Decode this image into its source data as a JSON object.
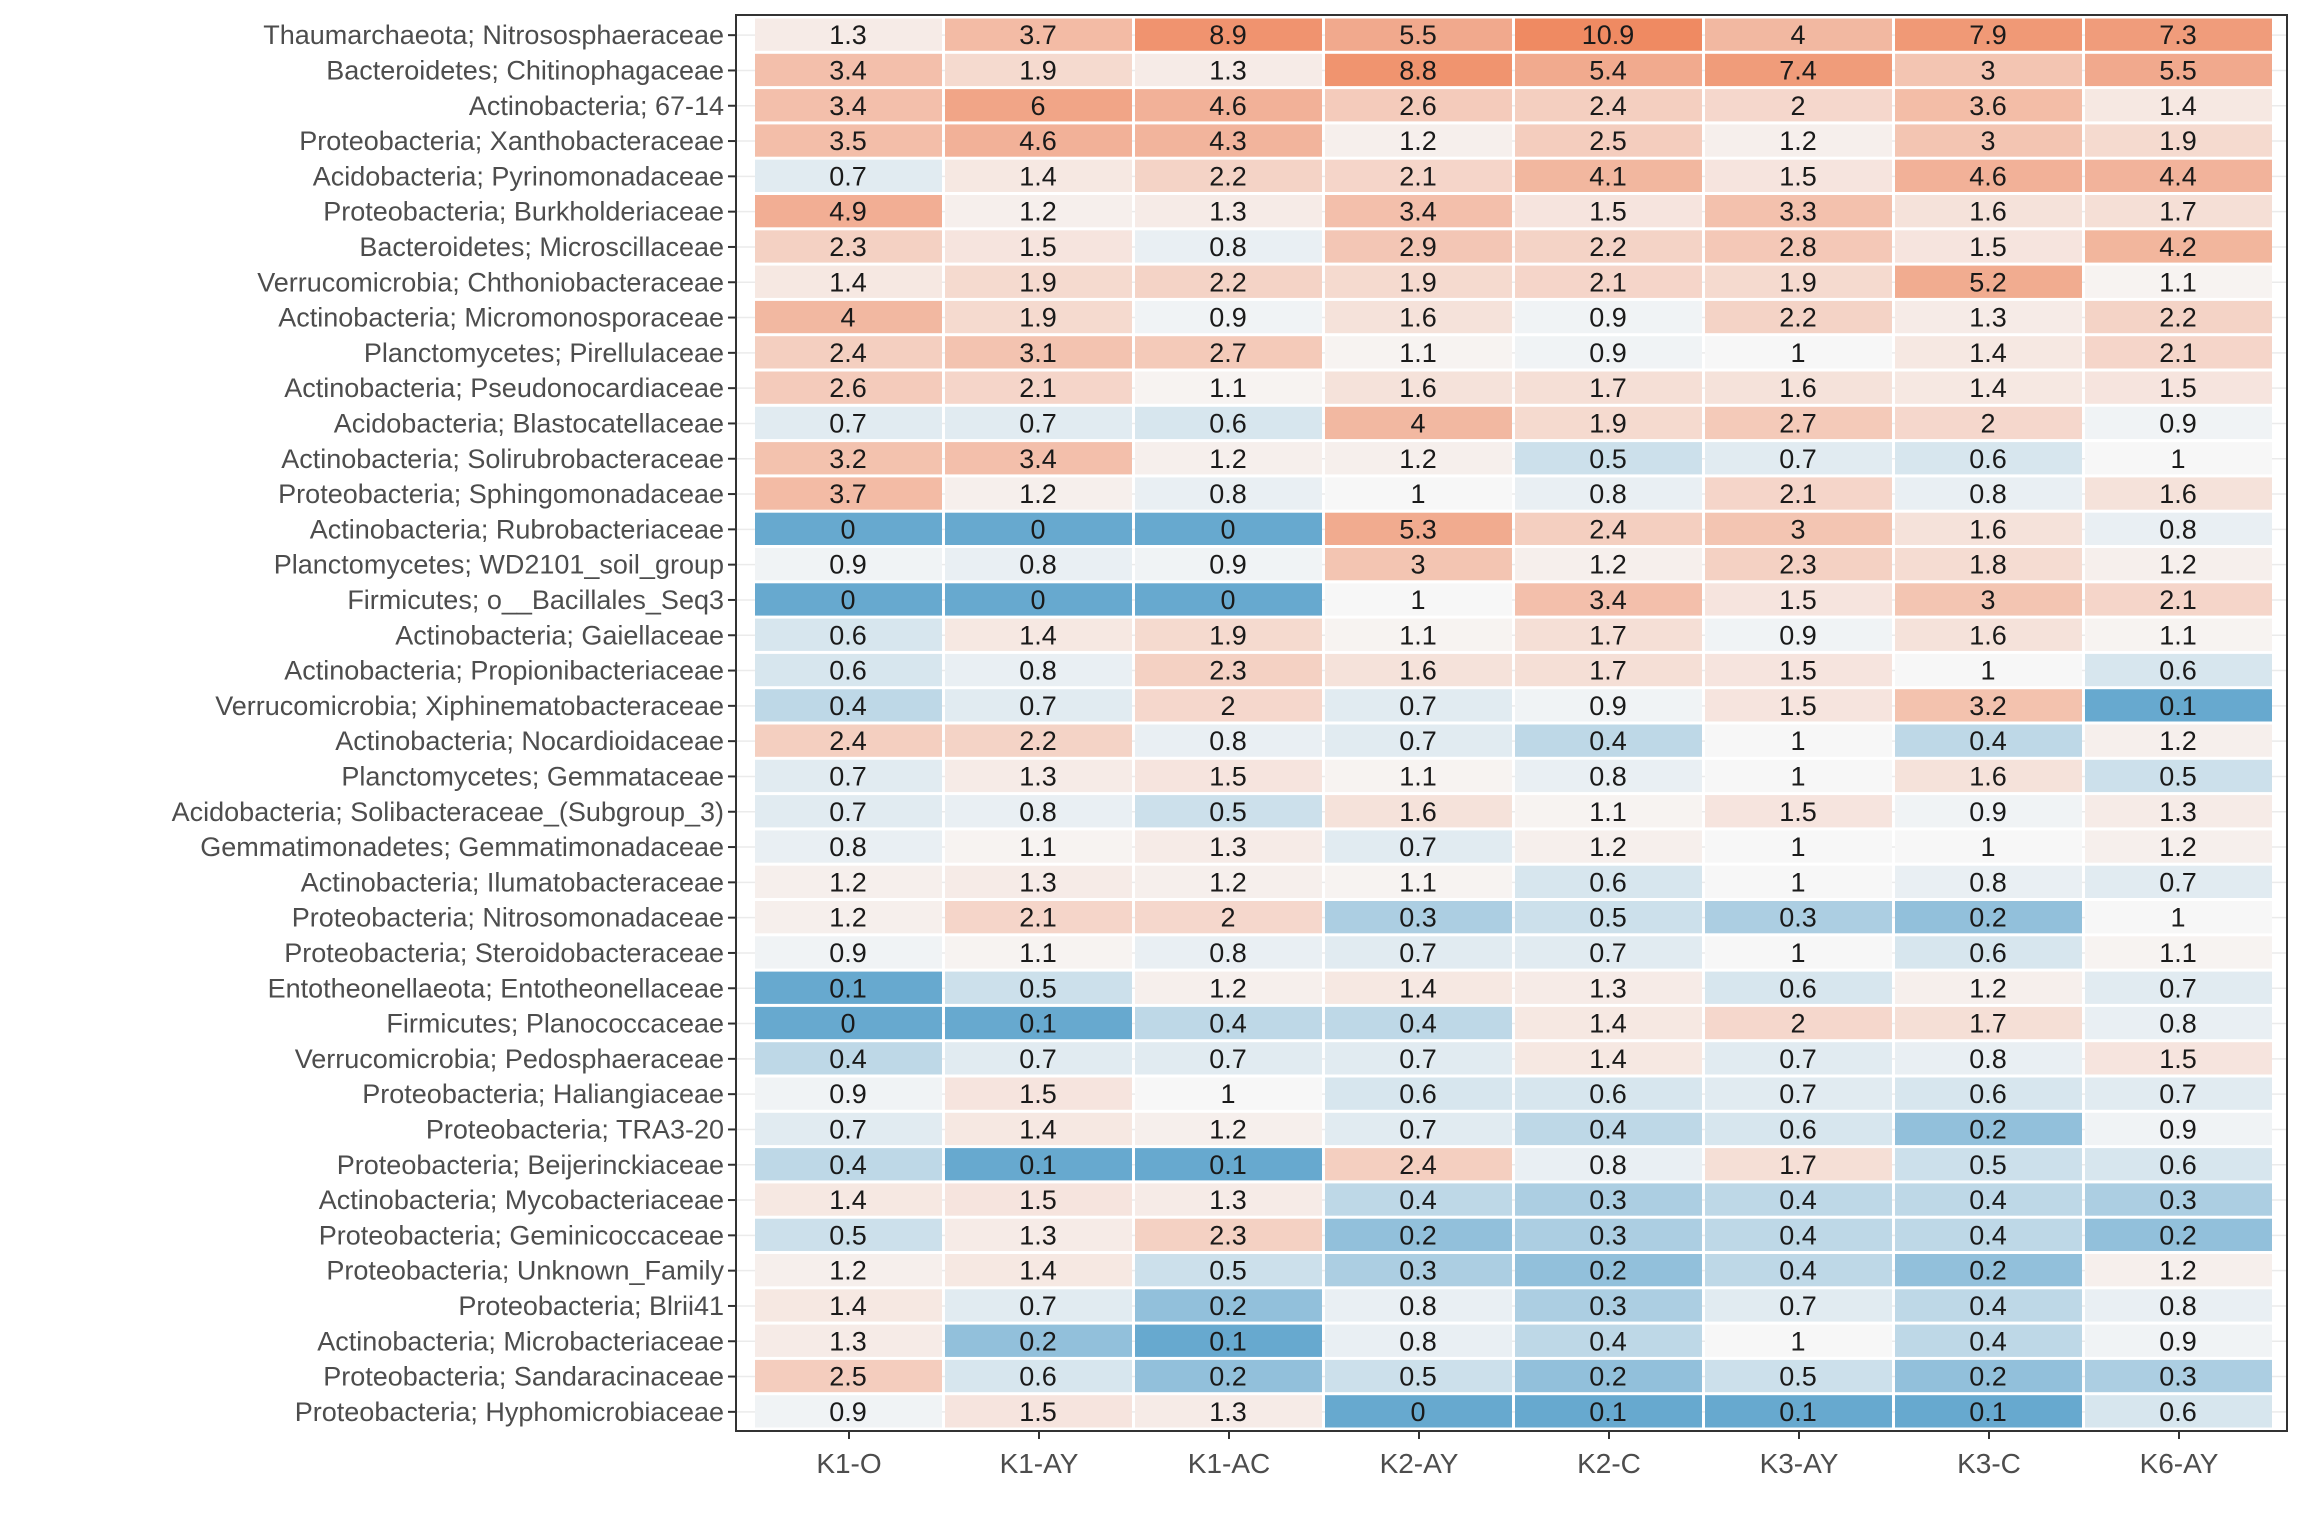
{
  "chart_data": {
    "type": "heatmap",
    "title": "",
    "xlabel": "",
    "ylabel": "",
    "color_scale": {
      "low": "#67a9cf",
      "mid": "#f7f7f7",
      "high": "#ef8a62",
      "midpoint": 1
    },
    "grid": false,
    "legend": "none",
    "columns": [
      "K1-O",
      "K1-AY",
      "K1-AC",
      "K2-AY",
      "K2-C",
      "K3-AY",
      "K3-C",
      "K6-AY"
    ],
    "rows": [
      {
        "label": "Thaumarchaeota; Nitrososphaeraceae",
        "values": [
          1.3,
          3.7,
          8.9,
          5.5,
          10.9,
          4,
          7.9,
          7.3
        ]
      },
      {
        "label": "Bacteroidetes; Chitinophagaceae",
        "values": [
          3.4,
          1.9,
          1.3,
          8.8,
          5.4,
          7.4,
          3,
          5.5
        ]
      },
      {
        "label": "Actinobacteria; 67-14",
        "values": [
          3.4,
          6,
          4.6,
          2.6,
          2.4,
          2,
          3.6,
          1.4
        ]
      },
      {
        "label": "Proteobacteria; Xanthobacteraceae",
        "values": [
          3.5,
          4.6,
          4.3,
          1.2,
          2.5,
          1.2,
          3,
          1.9
        ]
      },
      {
        "label": "Acidobacteria; Pyrinomonadaceae",
        "values": [
          0.7,
          1.4,
          2.2,
          2.1,
          4.1,
          1.5,
          4.6,
          4.4
        ]
      },
      {
        "label": "Proteobacteria; Burkholderiaceae",
        "values": [
          4.9,
          1.2,
          1.3,
          3.4,
          1.5,
          3.3,
          1.6,
          1.7
        ]
      },
      {
        "label": "Bacteroidetes; Microscillaceae",
        "values": [
          2.3,
          1.5,
          0.8,
          2.9,
          2.2,
          2.8,
          1.5,
          4.2
        ]
      },
      {
        "label": "Verrucomicrobia; Chthoniobacteraceae",
        "values": [
          1.4,
          1.9,
          2.2,
          1.9,
          2.1,
          1.9,
          5.2,
          1.1
        ]
      },
      {
        "label": "Actinobacteria; Micromonosporaceae",
        "values": [
          4,
          1.9,
          0.9,
          1.6,
          0.9,
          2.2,
          1.3,
          2.2
        ]
      },
      {
        "label": "Planctomycetes; Pirellulaceae",
        "values": [
          2.4,
          3.1,
          2.7,
          1.1,
          0.9,
          1,
          1.4,
          2.1
        ]
      },
      {
        "label": "Actinobacteria; Pseudonocardiaceae",
        "values": [
          2.6,
          2.1,
          1.1,
          1.6,
          1.7,
          1.6,
          1.4,
          1.5
        ]
      },
      {
        "label": "Acidobacteria; Blastocatellaceae",
        "values": [
          0.7,
          0.7,
          0.6,
          4,
          1.9,
          2.7,
          2,
          0.9
        ]
      },
      {
        "label": "Actinobacteria; Solirubrobacteraceae",
        "values": [
          3.2,
          3.4,
          1.2,
          1.2,
          0.5,
          0.7,
          0.6,
          1
        ]
      },
      {
        "label": "Proteobacteria; Sphingomonadaceae",
        "values": [
          3.7,
          1.2,
          0.8,
          1,
          0.8,
          2.1,
          0.8,
          1.6
        ]
      },
      {
        "label": "Actinobacteria; Rubrobacteriaceae",
        "values": [
          0,
          0,
          0,
          5.3,
          2.4,
          3,
          1.6,
          0.8
        ]
      },
      {
        "label": "Planctomycetes; WD2101_soil_group",
        "values": [
          0.9,
          0.8,
          0.9,
          3,
          1.2,
          2.3,
          1.8,
          1.2
        ]
      },
      {
        "label": "Firmicutes; o__Bacillales_Seq3",
        "values": [
          0,
          0,
          0,
          1,
          3.4,
          1.5,
          3,
          2.1
        ]
      },
      {
        "label": "Actinobacteria; Gaiellaceae",
        "values": [
          0.6,
          1.4,
          1.9,
          1.1,
          1.7,
          0.9,
          1.6,
          1.1
        ]
      },
      {
        "label": "Actinobacteria; Propionibacteriaceae",
        "values": [
          0.6,
          0.8,
          2.3,
          1.6,
          1.7,
          1.5,
          1,
          0.6
        ]
      },
      {
        "label": "Verrucomicrobia; Xiphinematobacteraceae",
        "values": [
          0.4,
          0.7,
          2,
          0.7,
          0.9,
          1.5,
          3.2,
          0.1
        ]
      },
      {
        "label": "Actinobacteria; Nocardioidaceae",
        "values": [
          2.4,
          2.2,
          0.8,
          0.7,
          0.4,
          1,
          0.4,
          1.2
        ]
      },
      {
        "label": "Planctomycetes; Gemmataceae",
        "values": [
          0.7,
          1.3,
          1.5,
          1.1,
          0.8,
          1,
          1.6,
          0.5
        ]
      },
      {
        "label": "Acidobacteria; Solibacteraceae_(Subgroup_3)",
        "values": [
          0.7,
          0.8,
          0.5,
          1.6,
          1.1,
          1.5,
          0.9,
          1.3
        ]
      },
      {
        "label": "Gemmatimonadetes; Gemmatimonadaceae",
        "values": [
          0.8,
          1.1,
          1.3,
          0.7,
          1.2,
          1,
          1,
          1.2
        ]
      },
      {
        "label": "Actinobacteria; Ilumatobacteraceae",
        "values": [
          1.2,
          1.3,
          1.2,
          1.1,
          0.6,
          1,
          0.8,
          0.7
        ]
      },
      {
        "label": "Proteobacteria; Nitrosomonadaceae",
        "values": [
          1.2,
          2.1,
          2,
          0.3,
          0.5,
          0.3,
          0.2,
          1
        ]
      },
      {
        "label": "Proteobacteria; Steroidobacteraceae",
        "values": [
          0.9,
          1.1,
          0.8,
          0.7,
          0.7,
          1,
          0.6,
          1.1
        ]
      },
      {
        "label": "Entotheonellaeota; Entotheonellaceae",
        "values": [
          0.1,
          0.5,
          1.2,
          1.4,
          1.3,
          0.6,
          1.2,
          0.7
        ]
      },
      {
        "label": "Firmicutes; Planococcaceae",
        "values": [
          0,
          0.1,
          0.4,
          0.4,
          1.4,
          2,
          1.7,
          0.8
        ]
      },
      {
        "label": "Verrucomicrobia; Pedosphaeraceae",
        "values": [
          0.4,
          0.7,
          0.7,
          0.7,
          1.4,
          0.7,
          0.8,
          1.5
        ]
      },
      {
        "label": "Proteobacteria; Haliangiaceae",
        "values": [
          0.9,
          1.5,
          1,
          0.6,
          0.6,
          0.7,
          0.6,
          0.7
        ]
      },
      {
        "label": "Proteobacteria; TRA3-20",
        "values": [
          0.7,
          1.4,
          1.2,
          0.7,
          0.4,
          0.6,
          0.2,
          0.9
        ]
      },
      {
        "label": "Proteobacteria; Beijerinckiaceae",
        "values": [
          0.4,
          0.1,
          0.1,
          2.4,
          0.8,
          1.7,
          0.5,
          0.6
        ]
      },
      {
        "label": "Actinobacteria; Mycobacteriaceae",
        "values": [
          1.4,
          1.5,
          1.3,
          0.4,
          0.3,
          0.4,
          0.4,
          0.3
        ]
      },
      {
        "label": "Proteobacteria; Geminicoccaceae",
        "values": [
          0.5,
          1.3,
          2.3,
          0.2,
          0.3,
          0.4,
          0.4,
          0.2
        ]
      },
      {
        "label": "Proteobacteria; Unknown_Family",
        "values": [
          1.2,
          1.4,
          0.5,
          0.3,
          0.2,
          0.4,
          0.2,
          1.2
        ]
      },
      {
        "label": "Proteobacteria; Blrii41",
        "values": [
          1.4,
          0.7,
          0.2,
          0.8,
          0.3,
          0.7,
          0.4,
          0.8
        ]
      },
      {
        "label": "Actinobacteria; Microbacteriaceae",
        "values": [
          1.3,
          0.2,
          0.1,
          0.8,
          0.4,
          1,
          0.4,
          0.9
        ]
      },
      {
        "label": "Proteobacteria; Sandaracinaceae",
        "values": [
          2.5,
          0.6,
          0.2,
          0.5,
          0.2,
          0.5,
          0.2,
          0.3
        ]
      },
      {
        "label": "Proteobacteria; Hyphomicrobiaceae",
        "values": [
          0.9,
          1.5,
          1.3,
          0,
          0.1,
          0.1,
          0.1,
          0.6
        ]
      }
    ]
  }
}
